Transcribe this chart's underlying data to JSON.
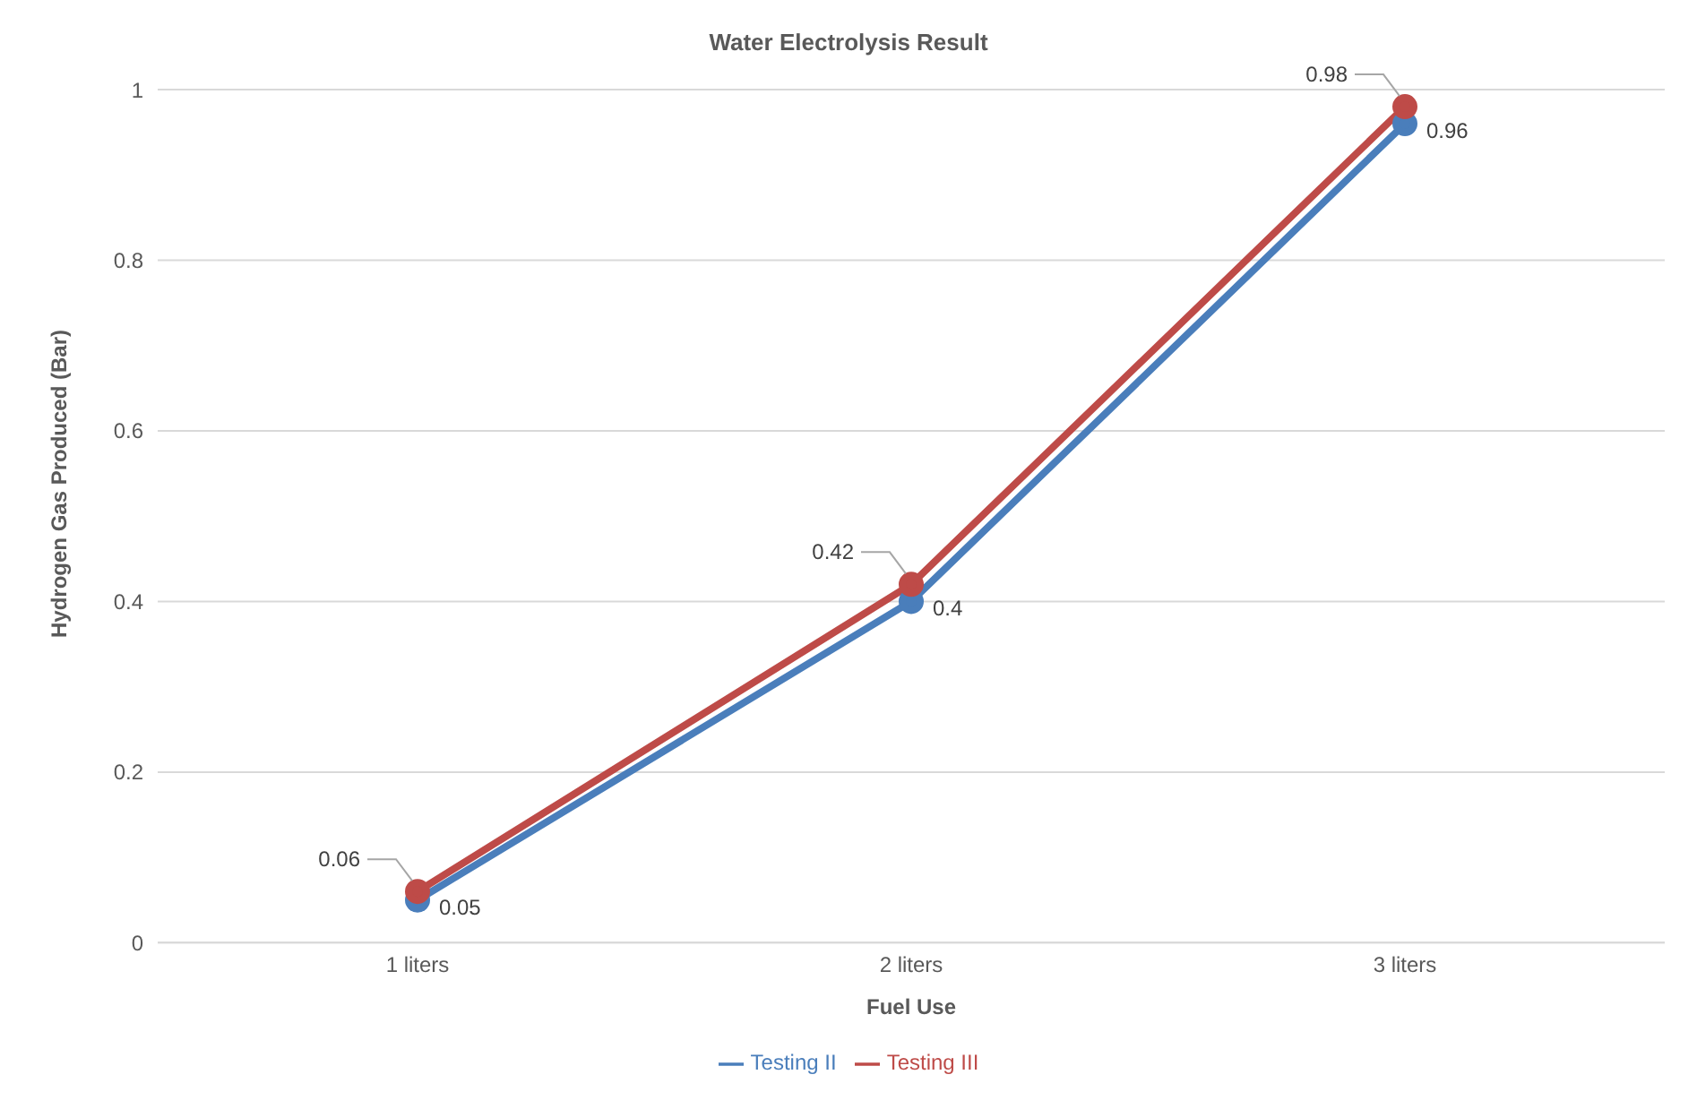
{
  "chart_data": {
    "type": "line",
    "title": "Water Electrolysis Result",
    "xlabel": "Fuel Use",
    "ylabel": "Hydrogen Gas Produced (Bar)",
    "categories": [
      "1  liters",
      "2  liters",
      "3  liters"
    ],
    "series": [
      {
        "name": "Testing II",
        "color": "#4a7ebb",
        "values": [
          0.05,
          0.4,
          0.96
        ]
      },
      {
        "name": "Testing III",
        "color": "#be4b48",
        "values": [
          0.06,
          0.42,
          0.98
        ]
      }
    ],
    "ylim": [
      0,
      1
    ],
    "yticks": [
      0,
      0.2,
      0.4,
      0.6,
      0.8,
      1
    ],
    "grid": "y",
    "legend": "bottom",
    "marker": "circle",
    "line_style": "solid",
    "data_labels": true
  }
}
